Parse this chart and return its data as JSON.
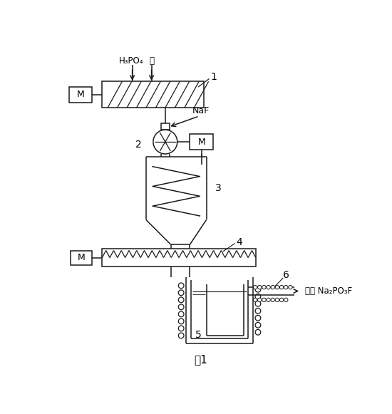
{
  "bg_color": "#ffffff",
  "line_color": "#1a1a1a",
  "fig_width": 5.5,
  "fig_height": 5.81,
  "labels": {
    "H3PO4": "H₃PO₄",
    "alkali": "碱",
    "NaF": "NaF",
    "label1": "1",
    "label2": "2",
    "label3": "3",
    "label4": "4",
    "label5": "5",
    "label6": "6",
    "M": "M",
    "product": "产品 Na₂PO₃F",
    "fig_caption": "图1"
  }
}
